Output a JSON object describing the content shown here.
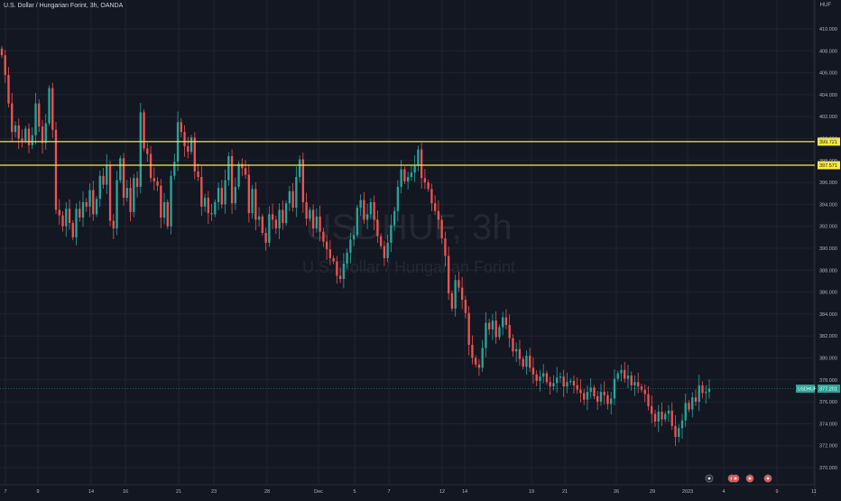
{
  "header": {
    "title": "U.S. Dollar / Hungarian Forint, 3h, OANDA",
    "currency": "HUF"
  },
  "watermark": {
    "symbol": "USDHUF, 3h",
    "name": "U.S. Dollar / Hungarian Forint"
  },
  "colors": {
    "background": "#131722",
    "up": "#26a69a",
    "down": "#ef5350",
    "level": "#ffeb3b",
    "grid": "#1f2330",
    "axis_text": "#b2b5be"
  },
  "chart_data": {
    "type": "candlestick",
    "y_ticks": [
      "410.000",
      "408.000",
      "406.000",
      "404.000",
      "402.000",
      "400.000",
      "398.000",
      "396.000",
      "394.000",
      "392.000",
      "390.000",
      "388.000",
      "386.000",
      "384.000",
      "382.000",
      "380.000",
      "378.000",
      "376.000",
      "374.000",
      "372.000",
      "370.000"
    ],
    "x_ticks": [
      "7",
      "9",
      "14",
      "16",
      "21",
      "23",
      "28",
      "Dec",
      "5",
      "7",
      "12",
      "14",
      "19",
      "21",
      "26",
      "29",
      "2023",
      "4",
      "9",
      "11"
    ],
    "ylim": [
      369.0,
      411.5
    ],
    "horizontal_levels": [
      {
        "value": 399.721,
        "label": "399.721"
      },
      {
        "value": 397.571,
        "label": "397.571"
      }
    ],
    "last_price": {
      "symbol": "USDHUF",
      "value": "377.201"
    },
    "candles_close": [
      407.6,
      405.8,
      403.2,
      400.6,
      401.2,
      400.0,
      399.8,
      400.9,
      399.4,
      400.3,
      403.2,
      401.1,
      399.6,
      401.4,
      404.6,
      400.8,
      393.5,
      393.0,
      392.0,
      393.6,
      392.3,
      391.0,
      393.6,
      392.8,
      394.2,
      393.8,
      395.3,
      393.1,
      394.5,
      396.6,
      395.8,
      397.6,
      392.5,
      391.8,
      396.2,
      398.2,
      394.6,
      395.5,
      393.3,
      396.4,
      395.6,
      402.4,
      399.1,
      398.6,
      396.4,
      396.1,
      395.7,
      392.8,
      394.2,
      392.0,
      396.6,
      397.9,
      401.5,
      400.6,
      399.3,
      398.8,
      400.1,
      397.0,
      396.5,
      393.8,
      394.6,
      393.2,
      393.1,
      394.2,
      395.5,
      394.0,
      396.2,
      398.4,
      394.1,
      395.6,
      397.7,
      397.3,
      396.7,
      393.2,
      395.4,
      392.6,
      392.9,
      391.4,
      390.5,
      393.1,
      392.6,
      391.8,
      393.5,
      392.3,
      394.1,
      395.2,
      393.7,
      396.5,
      398.1,
      394.2,
      392.7,
      393.5,
      391.8,
      392.9,
      391.5,
      390.6,
      389.9,
      389.1,
      388.8,
      387.5,
      387.2,
      388.6,
      389.6,
      390.8,
      391.2,
      393.7,
      394.4,
      392.6,
      393.1,
      394.2,
      392.6,
      391.1,
      390.2,
      389.1,
      390.5,
      392.1,
      393.4,
      395.6,
      397.2,
      396.1,
      396.5,
      396.9,
      397.5,
      399.0,
      396.4,
      396.0,
      395.4,
      394.1,
      393.4,
      392.6,
      390.9,
      389.3,
      385.9,
      384.5,
      387.1,
      386.4,
      385.3,
      384.1,
      381.2,
      380.0,
      379.4,
      379.1,
      380.9,
      383.2,
      382.6,
      383.4,
      381.9,
      382.8,
      383.7,
      383.0,
      381.8,
      380.6,
      380.8,
      379.9,
      379.2,
      380.2,
      379.1,
      378.5,
      377.9,
      378.3,
      378.6,
      377.8,
      377.4,
      377.7,
      378.2,
      378.3,
      377.4,
      377.8,
      377.9,
      377.5,
      377.1,
      376.8,
      376.2,
      376.9,
      377.3,
      376.5,
      376.0,
      376.9,
      376.6,
      375.8,
      376.3,
      378.1,
      378.6,
      378.9,
      378.1,
      378.4,
      377.5,
      377.8,
      377.4,
      377.1,
      376.7,
      375.6,
      374.9,
      374.2,
      375.1,
      374.4,
      374.9,
      375.2,
      373.8,
      372.8,
      373.6,
      374.3,
      375.9,
      375.3,
      376.4,
      376.0,
      377.5,
      376.8,
      376.9,
      377.2
    ]
  }
}
